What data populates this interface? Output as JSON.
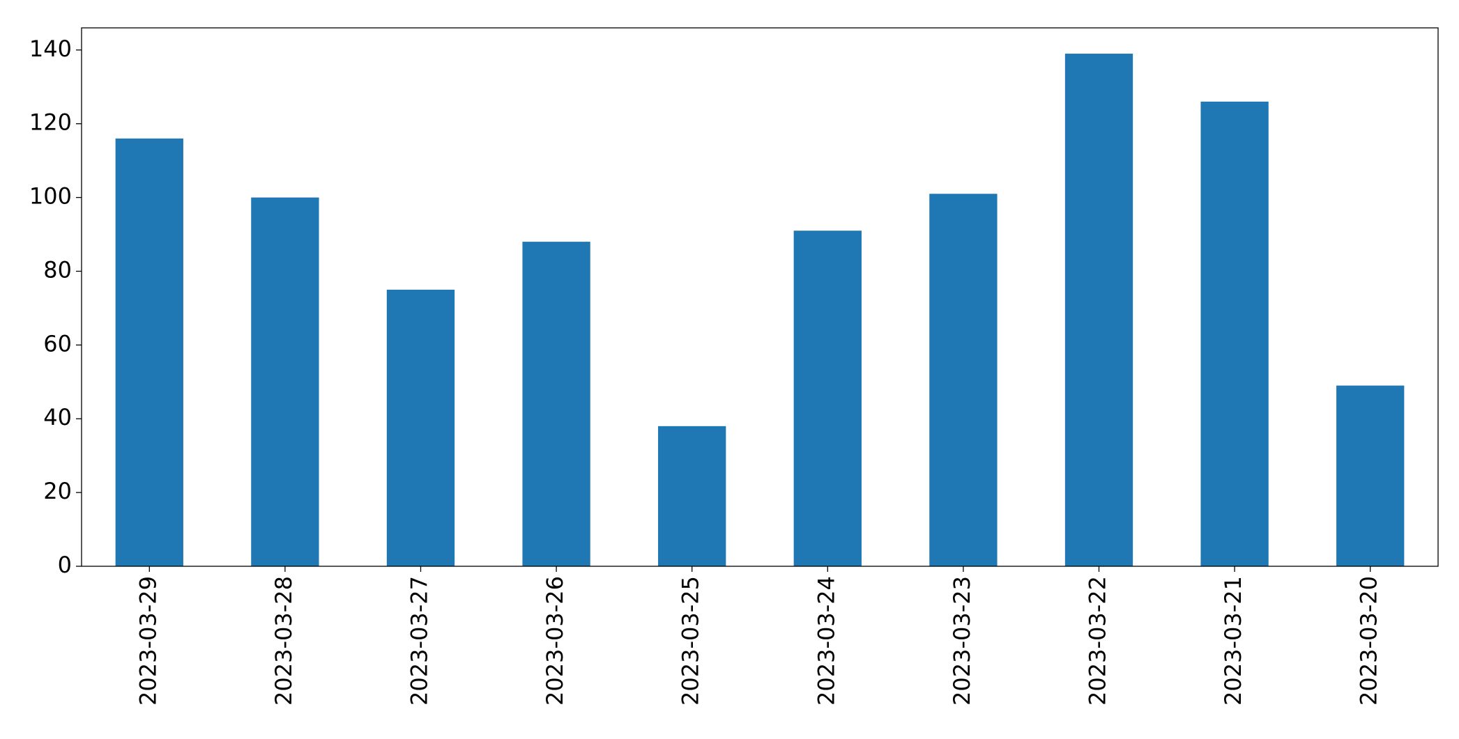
{
  "chart_data": {
    "type": "bar",
    "categories": [
      "2023-03-29",
      "2023-03-28",
      "2023-03-27",
      "2023-03-26",
      "2023-03-25",
      "2023-03-24",
      "2023-03-23",
      "2023-03-22",
      "2023-03-21",
      "2023-03-20"
    ],
    "values": [
      116,
      100,
      75,
      88,
      38,
      91,
      101,
      139,
      126,
      49
    ],
    "color": "#1f77b4",
    "ylim": [
      0,
      146
    ],
    "yticks": [
      0,
      20,
      40,
      60,
      80,
      100,
      120,
      140
    ],
    "grid": false
  }
}
